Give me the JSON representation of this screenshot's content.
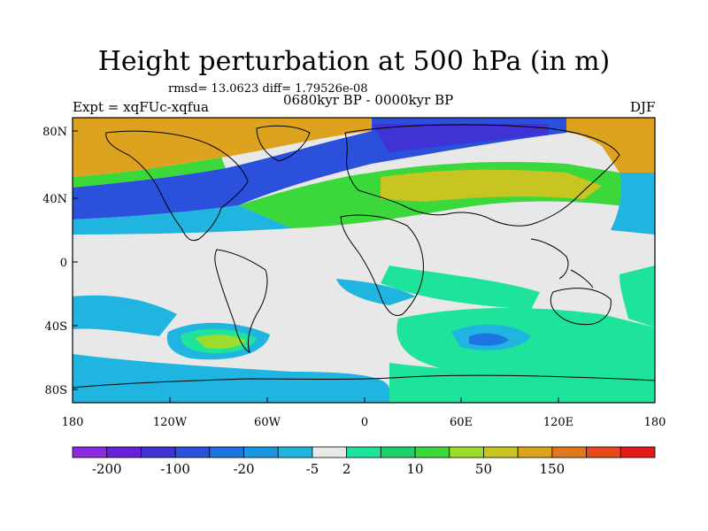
{
  "title": "Height perturbation at 500 hPa (in m)",
  "stats": "rmsd= 13.0623 diff= 1.79526e-08",
  "experiment": "Expt = xqFUc-xqfua",
  "period": "0680kyr BP - 0000kyr BP",
  "season": "DJF",
  "lat_labels": [
    "80N",
    "40N",
    "0",
    "40S",
    "80S"
  ],
  "lon_labels": [
    "180",
    "120W",
    "60W",
    "0",
    "60E",
    "120E",
    "180"
  ],
  "colorbar": {
    "labels": [
      "-200",
      "-100",
      "-20",
      "-5",
      "2",
      "10",
      "50",
      "150"
    ],
    "colors": [
      "#8a2be2",
      "#6a1fd8",
      "#3f33d6",
      "#2a50dc",
      "#1e74e0",
      "#1c96e0",
      "#20b4e0",
      "#e8e8e8",
      "#1ee39b",
      "#1ed26b",
      "#3bd83b",
      "#9ddc2c",
      "#c8c421",
      "#dda31e",
      "#e2761c",
      "#e54a1a",
      "#e31a1a"
    ]
  },
  "map_colors": {
    "neutral": "#e8e8e8",
    "light_green": "#1ee39b",
    "green": "#3bd83b",
    "yellow_green": "#9ddc2c",
    "olive": "#c8c421",
    "orange": "#dda31e",
    "light_blue": "#20b4e0",
    "mid_blue": "#1e74e0",
    "blue": "#2a50dc",
    "dark_blue": "#3f33d6"
  }
}
